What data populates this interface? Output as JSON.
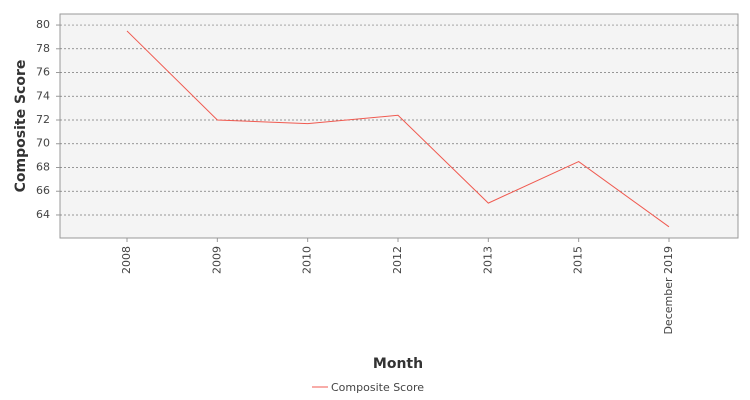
{
  "chart_data": {
    "type": "line",
    "x_label": "Month",
    "y_label": "Composite Score",
    "categories": [
      "2008",
      "2009",
      "2010",
      "2012",
      "2013",
      "2015",
      "December 2019"
    ],
    "series": [
      {
        "name": "Composite Score",
        "color": "#f05a50",
        "values": [
          79.5,
          72.0,
          71.7,
          72.4,
          65.0,
          68.5,
          63.0
        ]
      }
    ],
    "ylim": [
      62.06,
      80.93
    ],
    "yticks": [
      64,
      66,
      68,
      70,
      72,
      74,
      76,
      78,
      80
    ],
    "grid": true,
    "legend": "bottom"
  }
}
